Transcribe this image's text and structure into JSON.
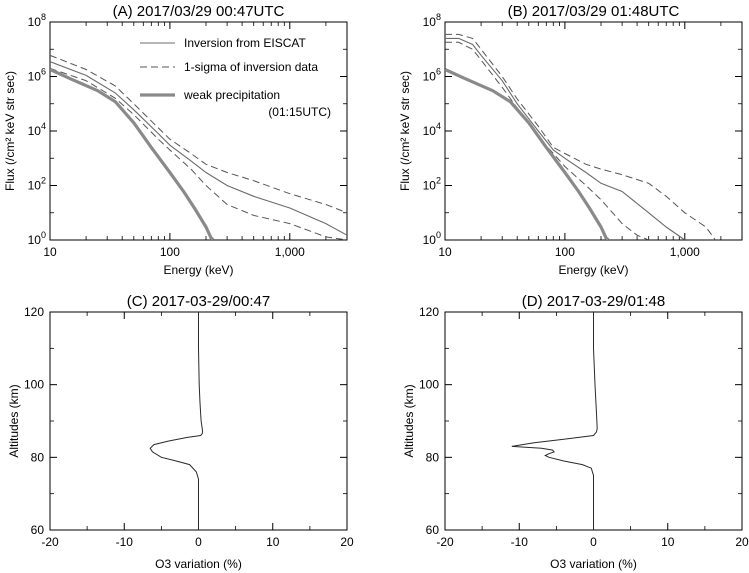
{
  "chart_data": [
    {
      "type": "line",
      "title": "(A) 2017/03/29 00:47UTC",
      "xlabel": "Energy (keV)",
      "ylabel": "Flux (/cm² keV str sec)",
      "x_scale": "log",
      "y_scale": "log",
      "xlim": [
        10,
        3000
      ],
      "ylim": [
        1,
        100000000
      ],
      "x_ticks": [
        {
          "v": 10,
          "label": "10"
        },
        {
          "v": 100,
          "label": "100"
        },
        {
          "v": 1000,
          "label": "1,000"
        }
      ],
      "y_ticks": [
        {
          "v": 1,
          "base": "10",
          "exp": "0"
        },
        {
          "v": 100,
          "base": "10",
          "exp": "2"
        },
        {
          "v": 10000,
          "base": "10",
          "exp": "4"
        },
        {
          "v": 1000000,
          "base": "10",
          "exp": "6"
        },
        {
          "v": 100000000,
          "base": "10",
          "exp": "8"
        }
      ],
      "legend": {
        "position": "top-right",
        "entries": [
          {
            "label": "Inversion from EISCAT",
            "style": "thin-solid"
          },
          {
            "label": "1-sigma of inversion data",
            "style": "dashed"
          },
          {
            "label": "weak precipitation",
            "sublabel": "(01:15UTC)",
            "style": "thick-solid"
          }
        ]
      },
      "series": [
        {
          "name": "Inversion from EISCAT",
          "style": "thin-solid",
          "x": [
            10,
            20,
            35,
            50,
            80,
            100,
            150,
            200,
            300,
            500,
            1000,
            2000,
            3000
          ],
          "y": [
            3500000,
            1100000,
            250000,
            60000,
            8000,
            3000,
            800,
            300,
            100,
            40,
            15,
            4,
            1.5
          ]
        },
        {
          "name": "sigma-upper",
          "style": "dashed",
          "x": [
            10,
            20,
            35,
            50,
            80,
            100,
            150,
            200,
            300,
            500,
            1000,
            2000,
            3000
          ],
          "y": [
            6000000,
            1800000,
            450000,
            100000,
            13000,
            5000,
            1500,
            600,
            300,
            150,
            50,
            20,
            10
          ]
        },
        {
          "name": "sigma-lower",
          "style": "dashed",
          "x": [
            10,
            20,
            35,
            50,
            80,
            100,
            150,
            200,
            300,
            500,
            1000,
            2000,
            3000
          ],
          "y": [
            2000000,
            700000,
            160000,
            40000,
            5000,
            2000,
            400,
            100,
            20,
            8,
            4,
            1.3,
            1
          ]
        },
        {
          "name": "weak precipitation",
          "style": "thick-solid",
          "x": [
            10,
            15,
            25,
            35,
            50,
            70,
            100,
            130,
            160,
            200,
            220,
            230
          ],
          "y": [
            1800000,
            800000,
            300000,
            120000,
            20000,
            2500,
            300,
            60,
            15,
            3,
            1.2,
            1
          ]
        }
      ]
    },
    {
      "type": "line",
      "title": "(B) 2017/03/29 01:48UTC",
      "xlabel": "Energy (keV)",
      "ylabel": "Flux (/cm² keV str sec)",
      "x_scale": "log",
      "y_scale": "log",
      "xlim": [
        10,
        3000
      ],
      "ylim": [
        1,
        100000000
      ],
      "x_ticks": [
        {
          "v": 10,
          "label": "10"
        },
        {
          "v": 100,
          "label": "100"
        },
        {
          "v": 1000,
          "label": "1,000"
        }
      ],
      "y_ticks": [
        {
          "v": 1,
          "base": "10",
          "exp": "0"
        },
        {
          "v": 100,
          "base": "10",
          "exp": "2"
        },
        {
          "v": 10000,
          "base": "10",
          "exp": "4"
        },
        {
          "v": 1000000,
          "base": "10",
          "exp": "6"
        },
        {
          "v": 100000000,
          "base": "10",
          "exp": "8"
        }
      ],
      "series": [
        {
          "name": "Inversion from EISCAT",
          "style": "thin-solid",
          "x": [
            10,
            13,
            17,
            20,
            30,
            40,
            60,
            80,
            100,
            150,
            200,
            300,
            500,
            700,
            1000
          ],
          "y": [
            25000000,
            25000000,
            15000000,
            6000000,
            700000,
            100000,
            10000,
            2000,
            1000,
            300,
            120,
            60,
            10,
            3,
            1
          ]
        },
        {
          "name": "sigma-upper",
          "style": "dashed",
          "x": [
            10,
            13,
            17,
            20,
            30,
            40,
            60,
            80,
            100,
            150,
            200,
            300,
            500,
            700,
            1000,
            1500,
            1800
          ],
          "y": [
            35000000,
            35000000,
            25000000,
            10000000,
            1000000,
            150000,
            15000,
            2500,
            1500,
            600,
            400,
            250,
            120,
            40,
            10,
            3,
            1
          ]
        },
        {
          "name": "sigma-lower",
          "style": "dashed",
          "x": [
            10,
            13,
            17,
            20,
            30,
            40,
            60,
            80,
            100,
            150,
            200,
            250,
            300,
            400,
            500
          ],
          "y": [
            18000000,
            18000000,
            10000000,
            4000000,
            400000,
            70000,
            6000,
            1500,
            500,
            100,
            30,
            10,
            4,
            1.5,
            1
          ]
        },
        {
          "name": "weak precipitation",
          "style": "thick-solid",
          "x": [
            10,
            15,
            25,
            35,
            50,
            70,
            100,
            130,
            160,
            200,
            220,
            230
          ],
          "y": [
            1800000,
            800000,
            300000,
            120000,
            20000,
            2500,
            300,
            60,
            15,
            3,
            1.2,
            1
          ]
        }
      ]
    },
    {
      "type": "line",
      "title": "(C) 2017-03-29/00:47",
      "xlabel": "O3 variation (%)",
      "ylabel": "Altitudes (km)",
      "xlim": [
        -20,
        20
      ],
      "ylim": [
        60,
        120
      ],
      "x_ticks": [
        -20,
        -10,
        0,
        10,
        20
      ],
      "y_ticks": [
        60,
        80,
        100,
        120
      ],
      "series": [
        {
          "name": "O3 variation",
          "x": [
            0,
            0,
            0.1,
            0.2,
            0.35,
            0.5,
            0.55,
            0.5,
            0.3,
            -1.5,
            -4,
            -6,
            -6.5,
            -6.2,
            -5,
            -3,
            -1.2,
            -0.3,
            0,
            0
          ],
          "y": [
            120,
            110,
            100,
            95,
            90,
            88,
            87,
            86.5,
            86,
            85.5,
            84.5,
            83.5,
            82.5,
            81.5,
            80,
            79,
            78,
            76,
            74,
            60
          ]
        }
      ]
    },
    {
      "type": "line",
      "title": "(D) 2017-03-29/01:48",
      "xlabel": "O3 variation (%)",
      "ylabel": "Altitudes (km)",
      "xlim": [
        -20,
        20
      ],
      "ylim": [
        60,
        120
      ],
      "x_ticks": [
        -20,
        -10,
        0,
        10,
        20
      ],
      "y_ticks": [
        60,
        80,
        100,
        120
      ],
      "series": [
        {
          "name": "O3 variation",
          "x": [
            0,
            0,
            0.2,
            0.4,
            0.5,
            0.4,
            0,
            -4,
            -8,
            -11,
            -7,
            -5.5,
            -5.3,
            -6,
            -6.5,
            -6,
            -4,
            -1.5,
            -0.3,
            0,
            0
          ],
          "y": [
            120,
            110,
            100,
            92,
            88,
            87,
            86,
            85,
            84,
            83,
            82.5,
            82,
            81.5,
            81,
            80.5,
            80,
            79,
            78,
            77,
            75,
            60
          ]
        }
      ]
    }
  ]
}
